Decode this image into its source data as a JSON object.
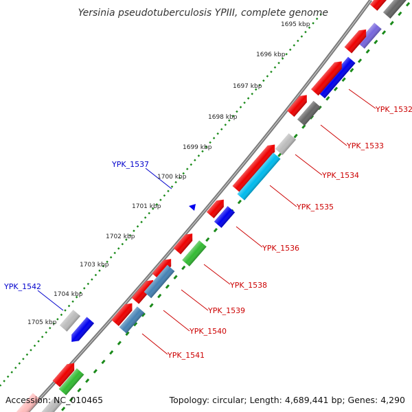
{
  "title": "Yersinia pseudotuberculosis YPIII, complete genome",
  "accession": "Accession: NC_010465",
  "topology": "Topology: circular; Length: 4,689,441 bp; Genes: 4,290",
  "colors": {
    "backbone": "#7a7a7a",
    "tick_green": "#1a8a1a",
    "label_red": "#cc0000",
    "label_blue": "#0000cc",
    "red": "#ee0000",
    "blue": "#0000ee",
    "steel": "#4682b4",
    "gray": "#666666",
    "lightgray": "#bbbbbb",
    "cyan": "#00bbee",
    "green": "#33bb33",
    "purple": "#7766dd",
    "pink": "#ffbbbb"
  },
  "ticks": [
    {
      "label": "1695 kbp"
    },
    {
      "label": "1696 kbp"
    },
    {
      "label": "1697 kbp"
    },
    {
      "label": "1698 kbp"
    },
    {
      "label": "1699 kbp"
    },
    {
      "label": "1700 kbp"
    },
    {
      "label": "1701 kbp"
    },
    {
      "label": "1702 kbp"
    },
    {
      "label": "1703 kbp"
    },
    {
      "label": "1704 kbp"
    },
    {
      "label": "1705 kbp"
    }
  ],
  "gene_labels": [
    {
      "name": "YPK_1532",
      "color": "red"
    },
    {
      "name": "YPK_1533",
      "color": "red"
    },
    {
      "name": "YPK_1534",
      "color": "red"
    },
    {
      "name": "YPK_1535",
      "color": "red"
    },
    {
      "name": "YPK_1536",
      "color": "red"
    },
    {
      "name": "YPK_1537",
      "color": "blue"
    },
    {
      "name": "YPK_1538",
      "color": "red"
    },
    {
      "name": "YPK_1539",
      "color": "red"
    },
    {
      "name": "YPK_1540",
      "color": "red"
    },
    {
      "name": "YPK_1541",
      "color": "red"
    },
    {
      "name": "YPK_1542",
      "color": "blue"
    }
  ]
}
